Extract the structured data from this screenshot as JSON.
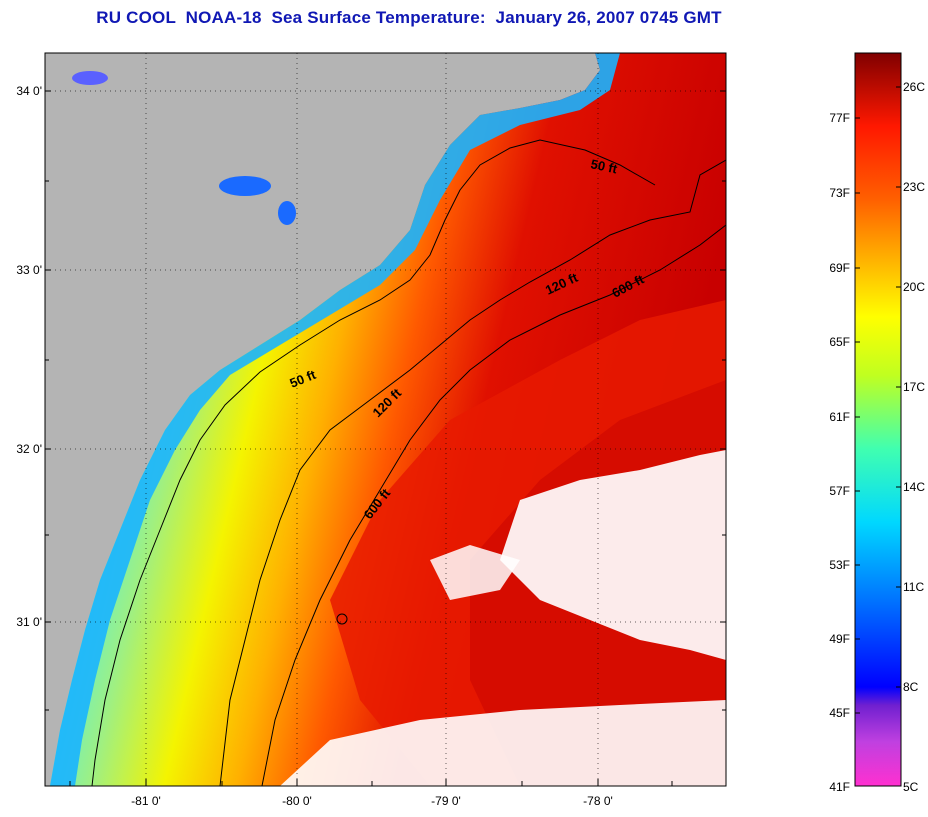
{
  "title": "RU COOL  NOAA-18  Sea Surface Temperature:  January 26, 2007 0745 GMT",
  "map": {
    "lat_labels": [
      "34 0'",
      "33 0'",
      "32 0'",
      "31 0'"
    ],
    "lon_labels": [
      "-81 0'",
      "-80 0'",
      "-79 0'",
      "-78 0'"
    ],
    "contours": [
      "50 ft",
      "50 ft",
      "120 ft",
      "120 ft",
      "600 ft",
      "600 ft"
    ],
    "colors": {
      "land": "#b4b4b4",
      "cloud": "#ffffff",
      "cold": "#00c8ff",
      "warm": "#ff2800"
    }
  },
  "colorbar": {
    "fahrenheit": [
      "77F",
      "73F",
      "69F",
      "65F",
      "61F",
      "57F",
      "53F",
      "49F",
      "45F",
      "41F"
    ],
    "celsius": [
      "26C",
      "23C",
      "20C",
      "17C",
      "14C",
      "11C",
      "8C",
      "5C"
    ],
    "min_c": 5,
    "max_c": 27
  }
}
